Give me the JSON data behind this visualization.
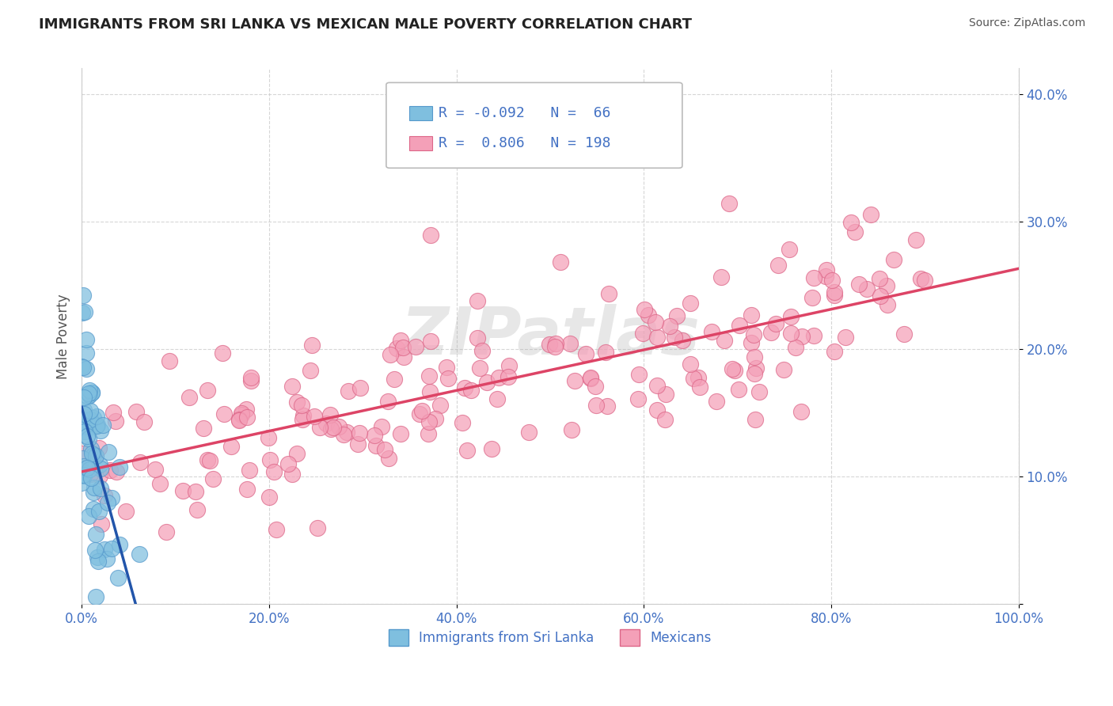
{
  "title": "IMMIGRANTS FROM SRI LANKA VS MEXICAN MALE POVERTY CORRELATION CHART",
  "source": "Source: ZipAtlas.com",
  "xlabel": "",
  "ylabel": "Male Poverty",
  "xlim": [
    0.0,
    1.0
  ],
  "ylim": [
    0.0,
    0.42
  ],
  "xticks": [
    0.0,
    0.2,
    0.4,
    0.6,
    0.8,
    1.0
  ],
  "xtick_labels": [
    "0.0%",
    "20.0%",
    "40.0%",
    "60.0%",
    "80.0%",
    "100.0%"
  ],
  "yticks": [
    0.0,
    0.1,
    0.2,
    0.3,
    0.4
  ],
  "ytick_labels": [
    "",
    "10.0%",
    "20.0%",
    "30.0%",
    "40.0%"
  ],
  "srilanka_color": "#7fbfdf",
  "srilanka_edge": "#5599cc",
  "mexican_color": "#f4a0b8",
  "mexican_edge": "#dd6688",
  "srilanka_R": -0.092,
  "srilanka_N": 66,
  "mexican_R": 0.806,
  "mexican_N": 198,
  "trend_srilanka_color": "#2255aa",
  "trend_mexican_color": "#dd4466",
  "watermark": "ZIPatlas",
  "legend_label_1": "Immigrants from Sri Lanka",
  "legend_label_2": "Mexicans",
  "background_color": "#ffffff",
  "grid_color": "#cccccc",
  "title_color": "#222222",
  "axis_label_color": "#555555",
  "tick_label_color": "#4472c4",
  "source_color": "#555555"
}
